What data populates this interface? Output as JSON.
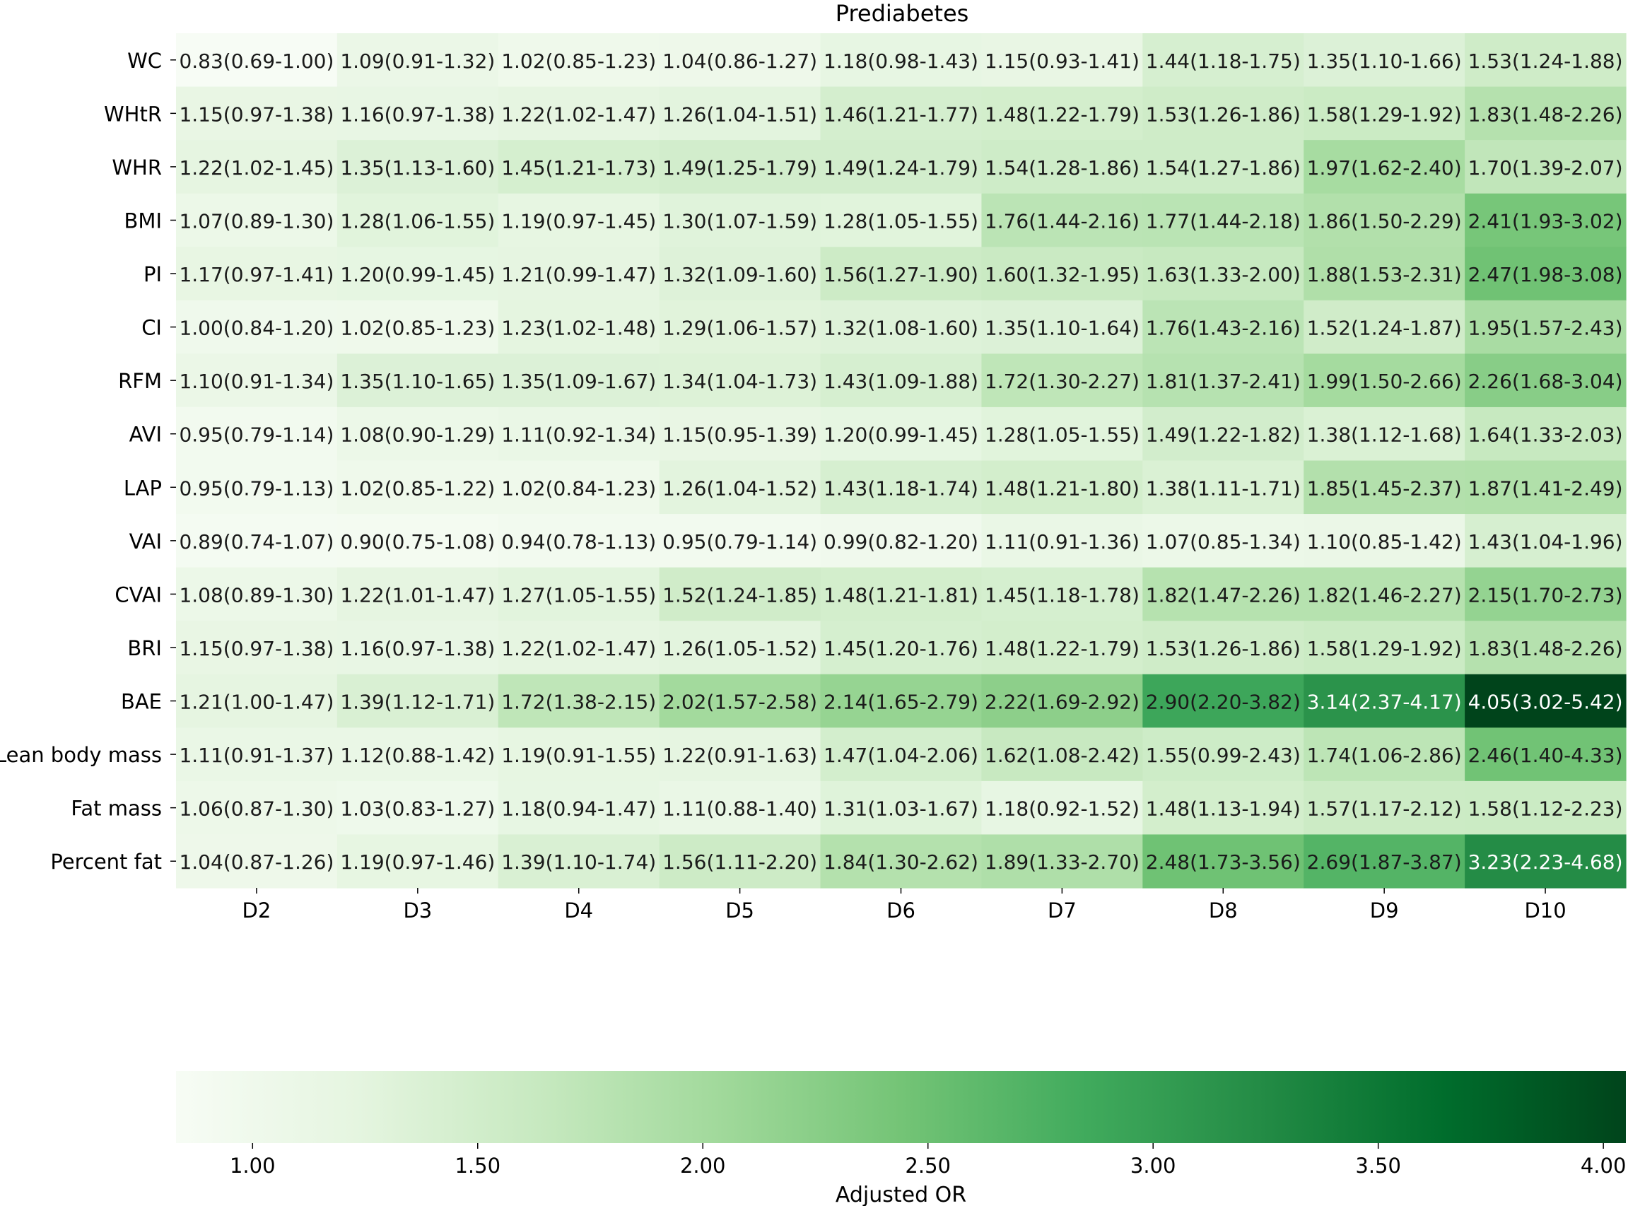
{
  "chart_data": {
    "type": "heatmap",
    "title": "Prediabetes",
    "x_categories": [
      "D2",
      "D3",
      "D4",
      "D5",
      "D6",
      "D7",
      "D8",
      "D9",
      "D10"
    ],
    "y_categories": [
      "WC",
      "WHtR",
      "WHR",
      "BMI",
      "PI",
      "CI",
      "RFM",
      "AVI",
      "LAP",
      "VAI",
      "CVAI",
      "BRI",
      "BAE",
      "Lean body mass",
      "Fat mass",
      "Percent fat"
    ],
    "cells": [
      [
        "0.83(0.69-1.00)",
        "1.09(0.91-1.32)",
        "1.02(0.85-1.23)",
        "1.04(0.86-1.27)",
        "1.18(0.98-1.43)",
        "1.15(0.93-1.41)",
        "1.44(1.18-1.75)",
        "1.35(1.10-1.66)",
        "1.53(1.24-1.88)"
      ],
      [
        "1.15(0.97-1.38)",
        "1.16(0.97-1.38)",
        "1.22(1.02-1.47)",
        "1.26(1.04-1.51)",
        "1.46(1.21-1.77)",
        "1.48(1.22-1.79)",
        "1.53(1.26-1.86)",
        "1.58(1.29-1.92)",
        "1.83(1.48-2.26)"
      ],
      [
        "1.22(1.02-1.45)",
        "1.35(1.13-1.60)",
        "1.45(1.21-1.73)",
        "1.49(1.25-1.79)",
        "1.49(1.24-1.79)",
        "1.54(1.28-1.86)",
        "1.54(1.27-1.86)",
        "1.97(1.62-2.40)",
        "1.70(1.39-2.07)"
      ],
      [
        "1.07(0.89-1.30)",
        "1.28(1.06-1.55)",
        "1.19(0.97-1.45)",
        "1.30(1.07-1.59)",
        "1.28(1.05-1.55)",
        "1.76(1.44-2.16)",
        "1.77(1.44-2.18)",
        "1.86(1.50-2.29)",
        "2.41(1.93-3.02)"
      ],
      [
        "1.17(0.97-1.41)",
        "1.20(0.99-1.45)",
        "1.21(0.99-1.47)",
        "1.32(1.09-1.60)",
        "1.56(1.27-1.90)",
        "1.60(1.32-1.95)",
        "1.63(1.33-2.00)",
        "1.88(1.53-2.31)",
        "2.47(1.98-3.08)"
      ],
      [
        "1.00(0.84-1.20)",
        "1.02(0.85-1.23)",
        "1.23(1.02-1.48)",
        "1.29(1.06-1.57)",
        "1.32(1.08-1.60)",
        "1.35(1.10-1.64)",
        "1.76(1.43-2.16)",
        "1.52(1.24-1.87)",
        "1.95(1.57-2.43)"
      ],
      [
        "1.10(0.91-1.34)",
        "1.35(1.10-1.65)",
        "1.35(1.09-1.67)",
        "1.34(1.04-1.73)",
        "1.43(1.09-1.88)",
        "1.72(1.30-2.27)",
        "1.81(1.37-2.41)",
        "1.99(1.50-2.66)",
        "2.26(1.68-3.04)"
      ],
      [
        "0.95(0.79-1.14)",
        "1.08(0.90-1.29)",
        "1.11(0.92-1.34)",
        "1.15(0.95-1.39)",
        "1.20(0.99-1.45)",
        "1.28(1.05-1.55)",
        "1.49(1.22-1.82)",
        "1.38(1.12-1.68)",
        "1.64(1.33-2.03)"
      ],
      [
        "0.95(0.79-1.13)",
        "1.02(0.85-1.22)",
        "1.02(0.84-1.23)",
        "1.26(1.04-1.52)",
        "1.43(1.18-1.74)",
        "1.48(1.21-1.80)",
        "1.38(1.11-1.71)",
        "1.85(1.45-2.37)",
        "1.87(1.41-2.49)"
      ],
      [
        "0.89(0.74-1.07)",
        "0.90(0.75-1.08)",
        "0.94(0.78-1.13)",
        "0.95(0.79-1.14)",
        "0.99(0.82-1.20)",
        "1.11(0.91-1.36)",
        "1.07(0.85-1.34)",
        "1.10(0.85-1.42)",
        "1.43(1.04-1.96)"
      ],
      [
        "1.08(0.89-1.30)",
        "1.22(1.01-1.47)",
        "1.27(1.05-1.55)",
        "1.52(1.24-1.85)",
        "1.48(1.21-1.81)",
        "1.45(1.18-1.78)",
        "1.82(1.47-2.26)",
        "1.82(1.46-2.27)",
        "2.15(1.70-2.73)"
      ],
      [
        "1.15(0.97-1.38)",
        "1.16(0.97-1.38)",
        "1.22(1.02-1.47)",
        "1.26(1.05-1.52)",
        "1.45(1.20-1.76)",
        "1.48(1.22-1.79)",
        "1.53(1.26-1.86)",
        "1.58(1.29-1.92)",
        "1.83(1.48-2.26)"
      ],
      [
        "1.21(1.00-1.47)",
        "1.39(1.12-1.71)",
        "1.72(1.38-2.15)",
        "2.02(1.57-2.58)",
        "2.14(1.65-2.79)",
        "2.22(1.69-2.92)",
        "2.90(2.20-3.82)",
        "3.14(2.37-4.17)",
        "4.05(3.02-5.42)"
      ],
      [
        "1.11(0.91-1.37)",
        "1.12(0.88-1.42)",
        "1.19(0.91-1.55)",
        "1.22(0.91-1.63)",
        "1.47(1.04-2.06)",
        "1.62(1.08-2.42)",
        "1.55(0.99-2.43)",
        "1.74(1.06-2.86)",
        "2.46(1.40-4.33)"
      ],
      [
        "1.06(0.87-1.30)",
        "1.03(0.83-1.27)",
        "1.18(0.94-1.47)",
        "1.11(0.88-1.40)",
        "1.31(1.03-1.67)",
        "1.18(0.92-1.52)",
        "1.48(1.13-1.94)",
        "1.57(1.17-2.12)",
        "1.58(1.12-2.23)"
      ],
      [
        "1.04(0.87-1.26)",
        "1.19(0.97-1.46)",
        "1.39(1.10-1.74)",
        "1.56(1.11-2.20)",
        "1.84(1.30-2.62)",
        "1.89(1.33-2.70)",
        "2.48(1.73-3.56)",
        "2.69(1.87-3.87)",
        "3.23(2.23-4.68)"
      ]
    ],
    "colorbar": {
      "label": "Adjusted OR",
      "ticks": [
        "1.00",
        "1.50",
        "2.00",
        "2.50",
        "3.00",
        "3.50",
        "4.00"
      ],
      "tick_values": [
        1.0,
        1.5,
        2.0,
        2.5,
        3.0,
        3.5,
        4.0
      ],
      "range": [
        0.83,
        4.05
      ],
      "colormap": "Greens",
      "color_stops": [
        "#f7fcf5",
        "#e5f5e0",
        "#c7e9c0",
        "#a1d99b",
        "#74c476",
        "#41ab5d",
        "#238b45",
        "#006d2c",
        "#00441b"
      ]
    },
    "grid": false
  }
}
